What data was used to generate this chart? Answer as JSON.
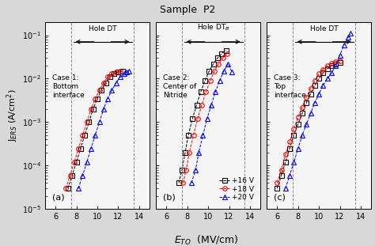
{
  "title": "Sample  P2",
  "ylabel": "J$_{ERS}$ (A/cm$^2$)",
  "xlabel_text": "E",
  "xlabel_sub": "TO",
  "xlabel_unit": " (MV/cm)",
  "xlim": [
    5.0,
    15.0
  ],
  "xticks": [
    6,
    8,
    10,
    12,
    14
  ],
  "ylim": [
    1e-05,
    0.2
  ],
  "cases": [
    "Case 1:\nBottom\ninterface",
    "Case 2:\nCenter of\nNitride",
    "Case 3:\nTop\ninterface"
  ],
  "case_labels": [
    "(a)",
    "(b)",
    "(c)"
  ],
  "legend_labels": [
    "+16 V",
    "+18 V",
    "+20 V"
  ],
  "colors": [
    "black",
    "red",
    "blue"
  ],
  "markers": [
    "s",
    "o",
    "^"
  ],
  "dv_lines_a": [
    7.5,
    13.5
  ],
  "dv_lines_b": [
    7.5,
    13.5
  ],
  "dv_lines_c": [
    7.5,
    13.5
  ],
  "data_a": {
    "x16": [
      7.2,
      7.6,
      8.0,
      8.4,
      8.8,
      9.2,
      9.6,
      10.0,
      10.4,
      10.8,
      11.2,
      11.6,
      12.0,
      12.4
    ],
    "y16": [
      3e-05,
      6e-05,
      0.00012,
      0.00025,
      0.0005,
      0.001,
      0.002,
      0.0035,
      0.0055,
      0.008,
      0.011,
      0.013,
      0.014,
      0.015
    ],
    "x18": [
      7.0,
      7.4,
      7.8,
      8.2,
      8.6,
      9.0,
      9.4,
      9.8,
      10.2,
      10.6,
      11.0,
      11.4,
      11.8,
      12.2
    ],
    "y18": [
      3e-05,
      6e-05,
      0.00012,
      0.00025,
      0.0005,
      0.001,
      0.002,
      0.0035,
      0.0055,
      0.008,
      0.011,
      0.013,
      0.014,
      0.015
    ],
    "x20": [
      8.2,
      8.6,
      9.0,
      9.4,
      9.8,
      10.2,
      10.6,
      11.0,
      11.4,
      11.8,
      12.2,
      12.6,
      12.8,
      13.0
    ],
    "y20": [
      3e-05,
      6e-05,
      0.00012,
      0.00025,
      0.0005,
      0.001,
      0.002,
      0.0035,
      0.0055,
      0.008,
      0.011,
      0.013,
      0.014,
      0.015
    ]
  },
  "data_b": {
    "x16": [
      7.2,
      7.5,
      7.8,
      8.1,
      8.5,
      8.9,
      9.3,
      9.7,
      10.1,
      10.5,
      10.9,
      11.3,
      11.7
    ],
    "y16": [
      4e-05,
      8e-05,
      0.0002,
      0.0005,
      0.0012,
      0.0025,
      0.005,
      0.009,
      0.015,
      0.022,
      0.03,
      0.038,
      0.045
    ],
    "x18": [
      7.6,
      7.9,
      8.2,
      8.6,
      9.0,
      9.4,
      9.8,
      10.2,
      10.6,
      11.0,
      11.4,
      11.8
    ],
    "y18": [
      4e-05,
      8e-05,
      0.0002,
      0.0005,
      0.0012,
      0.0025,
      0.005,
      0.009,
      0.015,
      0.022,
      0.03,
      0.038
    ],
    "x20": [
      8.4,
      8.8,
      9.1,
      9.5,
      9.9,
      10.3,
      10.7,
      11.1,
      11.5,
      11.9,
      12.3
    ],
    "y20": [
      4e-05,
      8e-05,
      0.0002,
      0.0005,
      0.0012,
      0.0025,
      0.005,
      0.009,
      0.015,
      0.022,
      0.014
    ]
  },
  "data_c": {
    "x16": [
      6.0,
      6.4,
      6.8,
      7.2,
      7.6,
      8.0,
      8.4,
      8.8,
      9.2,
      9.6,
      10.0,
      10.4,
      10.8,
      11.2,
      11.6,
      12.0
    ],
    "y16": [
      3e-05,
      6e-05,
      0.00012,
      0.00025,
      0.0005,
      0.0009,
      0.0016,
      0.0028,
      0.0045,
      0.007,
      0.01,
      0.0135,
      0.017,
      0.02,
      0.022,
      0.024
    ],
    "x18": [
      6.0,
      6.4,
      6.8,
      7.2,
      7.6,
      8.0,
      8.4,
      8.8,
      9.2,
      9.6,
      10.0,
      10.4,
      10.8,
      11.2,
      11.6,
      12.0
    ],
    "y18": [
      4e-05,
      8e-05,
      0.00018,
      0.00035,
      0.0007,
      0.0013,
      0.0022,
      0.0038,
      0.006,
      0.009,
      0.013,
      0.0165,
      0.02,
      0.023,
      0.025,
      0.026
    ],
    "x20": [
      6.8,
      7.2,
      7.6,
      8.0,
      8.4,
      8.8,
      9.2,
      9.6,
      10.0,
      10.4,
      10.8,
      11.2,
      11.6,
      12.0,
      12.4,
      12.8,
      13.0
    ],
    "y20": [
      3e-05,
      6e-05,
      0.00012,
      0.00025,
      0.0005,
      0.0009,
      0.0016,
      0.0028,
      0.0045,
      0.007,
      0.01,
      0.0135,
      0.02,
      0.035,
      0.06,
      0.09,
      0.11
    ]
  },
  "background": "#d8d8d8",
  "plot_bg": "#f5f5f5"
}
